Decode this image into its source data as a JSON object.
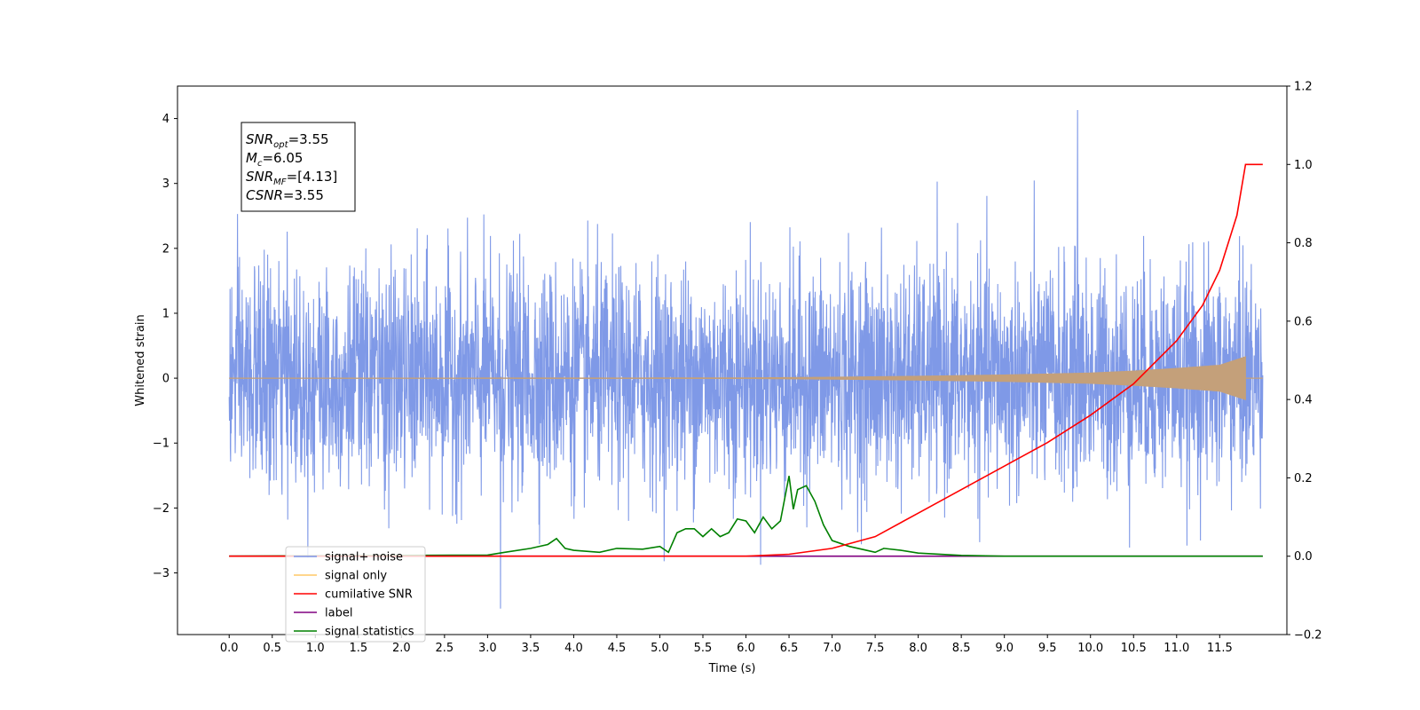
{
  "chart_data": {
    "type": "line",
    "title": "",
    "xlabel": "Time (s)",
    "ylabel": "Whitened strain",
    "ylabel_right": "",
    "xlim": [
      -0.6,
      12.28
    ],
    "ylim": [
      -3.95,
      4.5
    ],
    "ylim_right": [
      -0.2,
      1.2
    ],
    "x_ticks": [
      "0.0",
      "0.5",
      "1.0",
      "1.5",
      "2.0",
      "2.5",
      "3.0",
      "3.5",
      "4.0",
      "4.5",
      "5.0",
      "5.5",
      "6.0",
      "6.5",
      "7.0",
      "7.5",
      "8.0",
      "8.5",
      "9.0",
      "9.5",
      "10.0",
      "10.5",
      "11.0",
      "11.5"
    ],
    "y_ticks_left": [
      "−3",
      "−2",
      "−1",
      "0",
      "1",
      "2",
      "3",
      "4"
    ],
    "y_ticks_right": [
      "−0.2",
      "0.0",
      "0.2",
      "0.4",
      "0.6",
      "0.8",
      "1.0",
      "1.2"
    ],
    "grid": false,
    "legend_position": "lower-left",
    "series": [
      {
        "name": "signal+ noise",
        "color": "#7893e6",
        "axis": "left",
        "description_values": {
          "x_start": 0.0,
          "x_end": 12.0,
          "typical_range": [
            -1.9,
            2.0
          ],
          "peak_max": 4.13,
          "peak_min": -3.55
        }
      },
      {
        "name": "signal only",
        "color": "#c4a07a",
        "axis": "left",
        "amplitude_envelope": {
          "x": [
            0.0,
            6.0,
            7.0,
            8.0,
            9.0,
            10.0,
            10.5,
            11.0,
            11.5,
            11.8,
            12.0
          ],
          "y": [
            0.0,
            0.005,
            0.015,
            0.03,
            0.05,
            0.08,
            0.11,
            0.15,
            0.2,
            0.33,
            0.0
          ]
        }
      },
      {
        "name": "cumilative SNR",
        "color": "#ff0000",
        "axis": "right",
        "x": [
          0.0,
          6.0,
          6.5,
          7.0,
          7.5,
          8.0,
          8.5,
          9.0,
          9.5,
          10.0,
          10.5,
          11.0,
          11.3,
          11.5,
          11.7,
          11.8,
          12.0
        ],
        "y": [
          0.0,
          0.0,
          0.005,
          0.02,
          0.05,
          0.11,
          0.17,
          0.23,
          0.29,
          0.36,
          0.44,
          0.55,
          0.64,
          0.73,
          0.87,
          1.0,
          1.0
        ]
      },
      {
        "name": "label",
        "color": "#800080",
        "axis": "right",
        "x": [
          0.0,
          12.0
        ],
        "y": [
          0.0,
          0.0
        ]
      },
      {
        "name": "signal statistics",
        "color": "#008000",
        "axis": "right",
        "x": [
          0.0,
          2.0,
          3.0,
          3.2,
          3.5,
          3.7,
          3.8,
          3.9,
          4.0,
          4.3,
          4.5,
          4.8,
          5.0,
          5.1,
          5.2,
          5.3,
          5.4,
          5.5,
          5.6,
          5.7,
          5.8,
          5.9,
          6.0,
          6.1,
          6.2,
          6.3,
          6.4,
          6.5,
          6.55,
          6.6,
          6.7,
          6.8,
          6.9,
          7.0,
          7.2,
          7.4,
          7.5,
          7.6,
          7.8,
          8.0,
          8.5,
          9.0,
          12.0
        ],
        "y": [
          0.0,
          0.002,
          0.003,
          0.01,
          0.02,
          0.03,
          0.045,
          0.02,
          0.015,
          0.01,
          0.02,
          0.018,
          0.025,
          0.01,
          0.06,
          0.07,
          0.07,
          0.05,
          0.07,
          0.05,
          0.06,
          0.095,
          0.09,
          0.06,
          0.1,
          0.07,
          0.09,
          0.205,
          0.12,
          0.17,
          0.18,
          0.14,
          0.08,
          0.04,
          0.025,
          0.015,
          0.01,
          0.02,
          0.015,
          0.008,
          0.002,
          0.0,
          0.0
        ]
      }
    ],
    "legend_entries": [
      {
        "label": "signal+ noise",
        "color": "#7893e6"
      },
      {
        "label": "signal only",
        "color": "#ffc966"
      },
      {
        "label": "cumilative SNR",
        "color": "#ff0000"
      },
      {
        "label": "label",
        "color": "#800080"
      },
      {
        "label": "signal statistics",
        "color": "#008000"
      }
    ],
    "annotation": {
      "lines": [
        {
          "base": "SNR",
          "sub": "opt",
          "rest": "=3.55"
        },
        {
          "base": "M",
          "sub": "c",
          "rest": "=6.05"
        },
        {
          "base": "SNR",
          "sub": "MF",
          "rest": "=[4.13]"
        },
        {
          "base": "CSNR",
          "sub": "",
          "rest": "=3.55"
        }
      ]
    }
  }
}
